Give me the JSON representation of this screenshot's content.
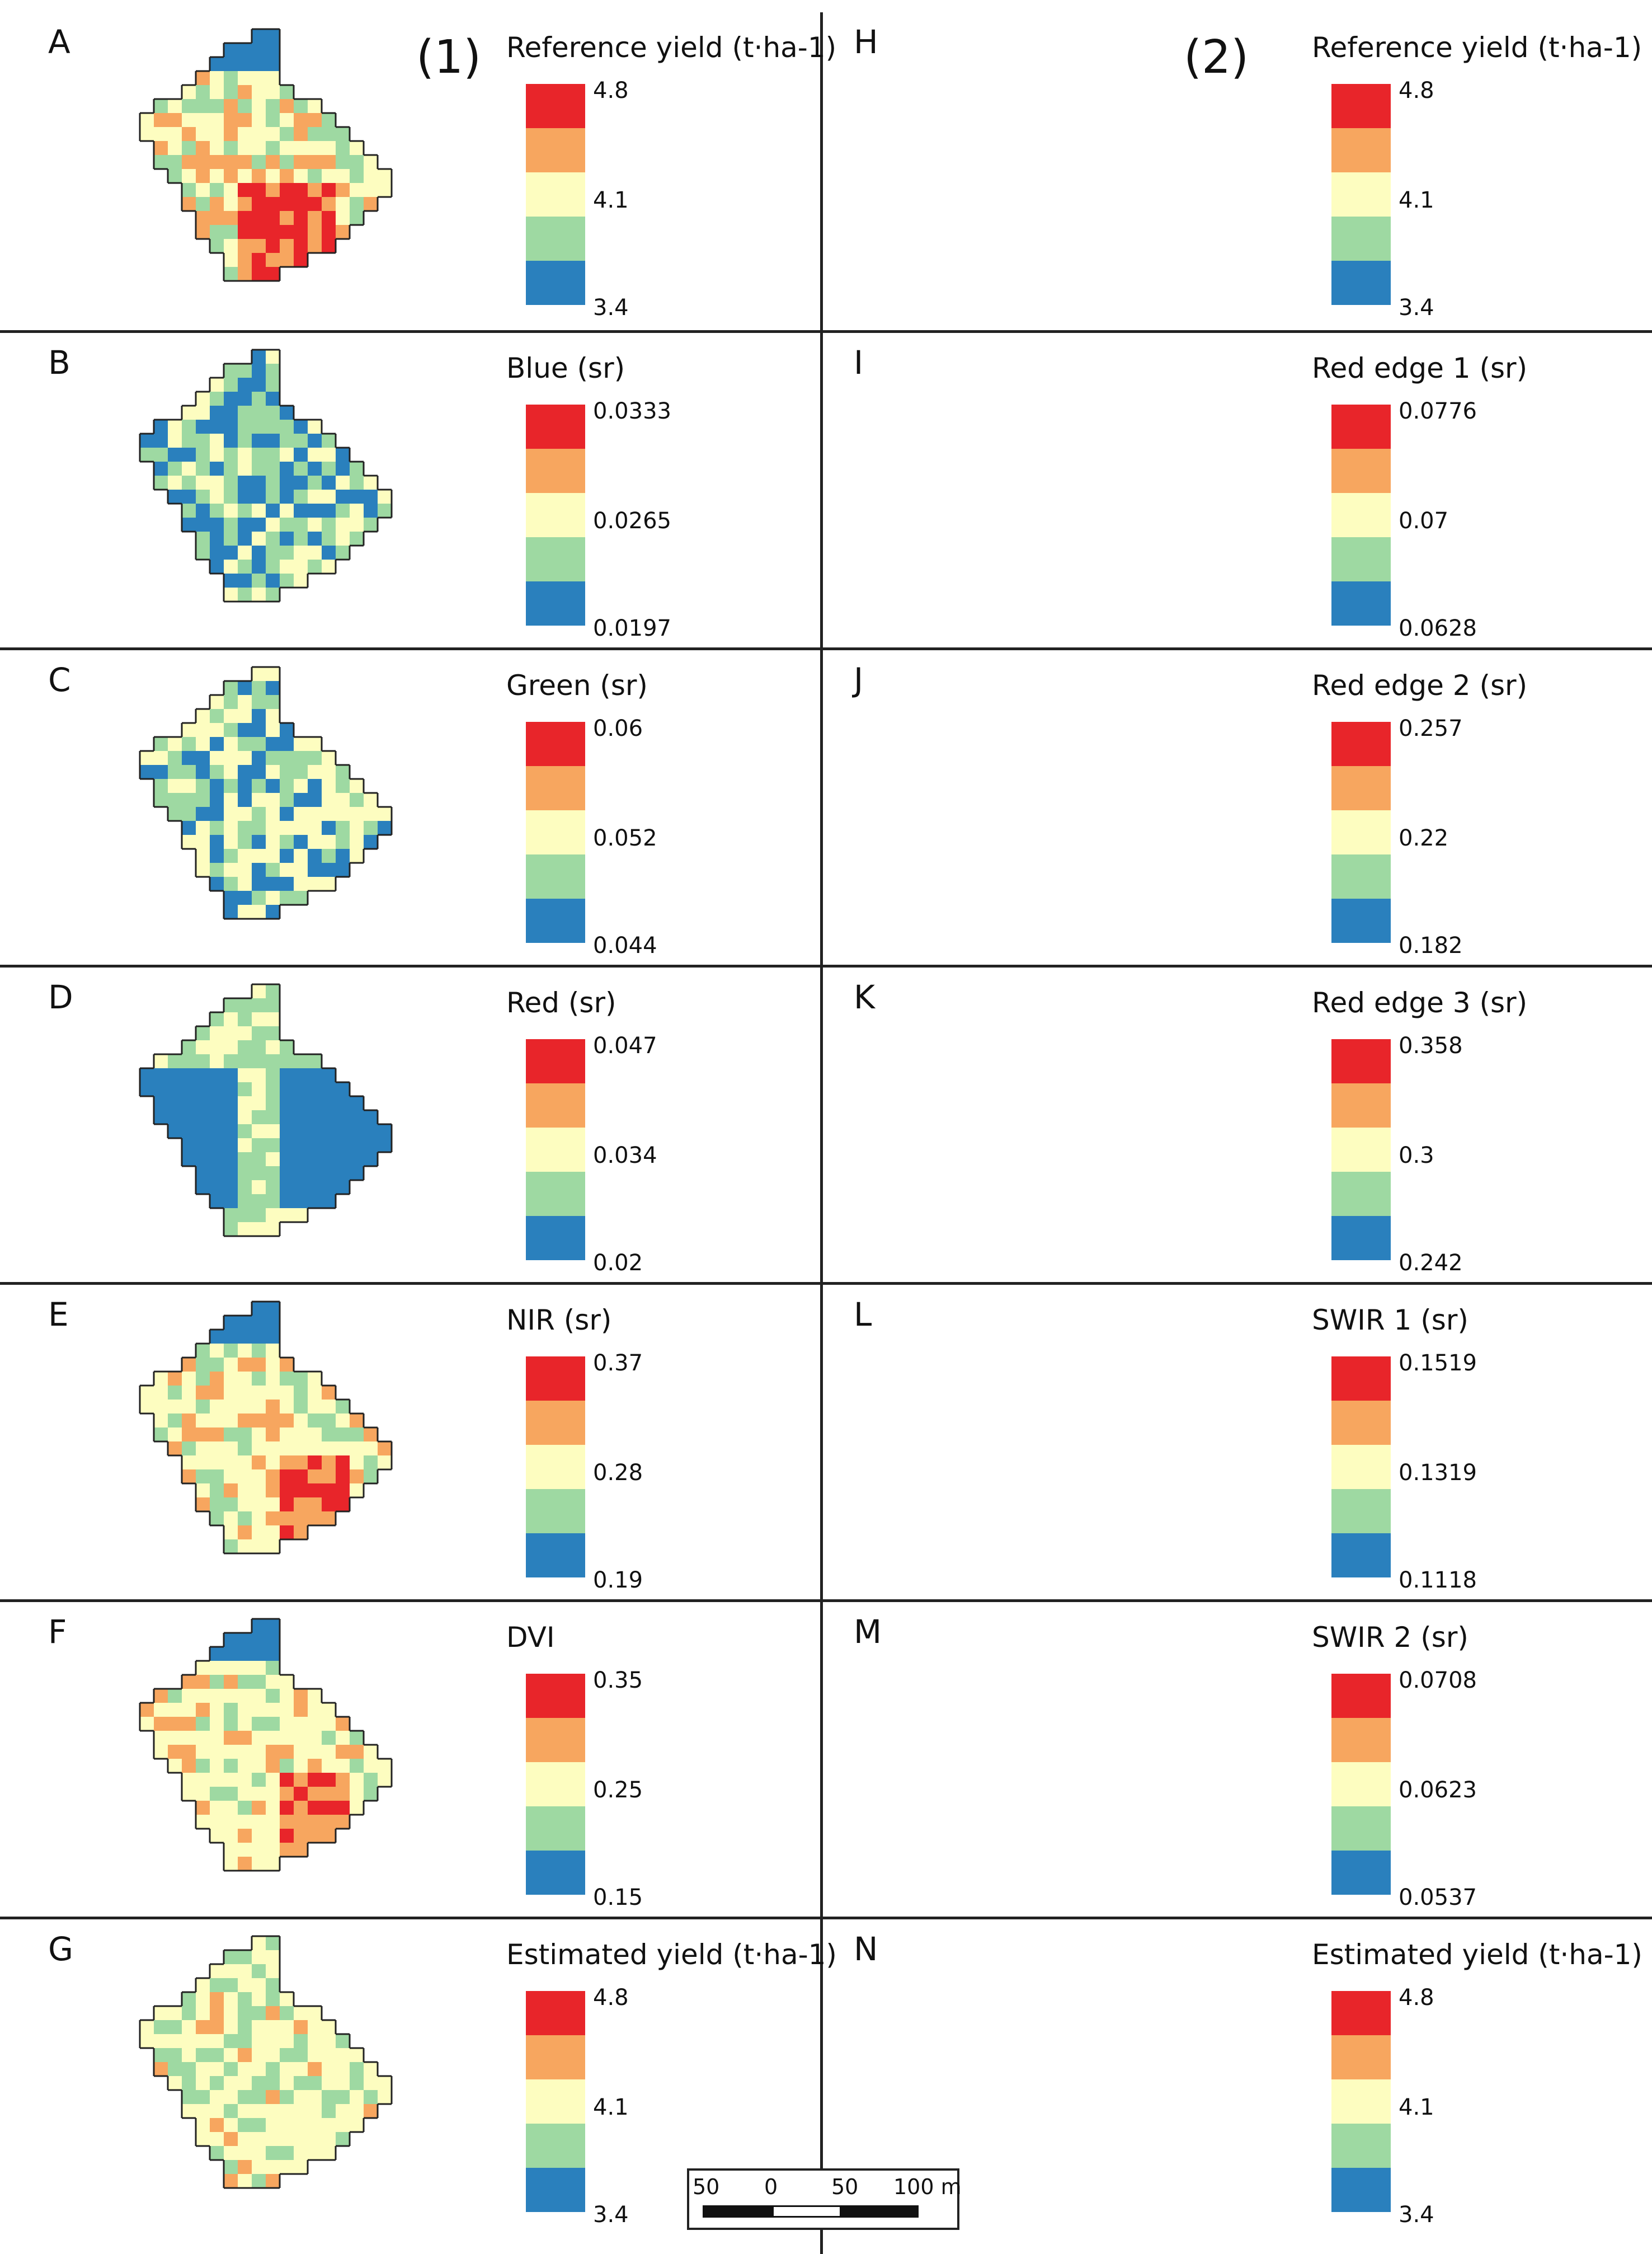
{
  "figure": {
    "group_labels": [
      "(1)",
      "(2)"
    ],
    "colors": {
      "red": "#e8252a",
      "orange": "#f7a65f",
      "yellow": "#fdfdc0",
      "green": "#9ed9a2",
      "blue": "#2a80bd",
      "line": "#222222"
    },
    "scale_bar": {
      "labels": [
        "50",
        "0",
        "50",
        "100 m"
      ]
    },
    "panels": [
      {
        "letter": "A",
        "legend_title": "Reference yield (t·ha-1)",
        "max": "4.8",
        "mid": "4.1",
        "min": "3.4"
      },
      {
        "letter": "B",
        "legend_title": "Blue (sr)",
        "max": "0.0333",
        "mid": "0.0265",
        "min": "0.0197"
      },
      {
        "letter": "C",
        "legend_title": "Green (sr)",
        "max": "0.06",
        "mid": "0.052",
        "min": "0.044"
      },
      {
        "letter": "D",
        "legend_title": "Red (sr)",
        "max": "0.047",
        "mid": "0.034",
        "min": "0.02"
      },
      {
        "letter": "E",
        "legend_title": "NIR (sr)",
        "max": "0.37",
        "mid": "0.28",
        "min": "0.19"
      },
      {
        "letter": "F",
        "legend_title": "DVI",
        "max": "0.35",
        "mid": "0.25",
        "min": "0.15"
      },
      {
        "letter": "G",
        "legend_title": "Estimated yield (t·ha-1)",
        "max": "4.8",
        "mid": "4.1",
        "min": "3.4"
      },
      {
        "letter": "H",
        "legend_title": "Reference yield (t·ha-1)",
        "max": "4.8",
        "mid": "4.1",
        "min": "3.4"
      },
      {
        "letter": "I",
        "legend_title": "Red edge 1 (sr)",
        "max": "0.0776",
        "mid": "0.07",
        "min": "0.0628"
      },
      {
        "letter": "J",
        "legend_title": "Red edge 2 (sr)",
        "max": "0.257",
        "mid": "0.22",
        "min": "0.182"
      },
      {
        "letter": "K",
        "legend_title": "Red edge 3 (sr)",
        "max": "0.358",
        "mid": "0.3",
        "min": "0.242"
      },
      {
        "letter": "L",
        "legend_title": "SWIR 1 (sr)",
        "max": "0.1519",
        "mid": "0.1319",
        "min": "0.1118"
      },
      {
        "letter": "M",
        "legend_title": "SWIR 2 (sr)",
        "max": "0.0708",
        "mid": "0.0623",
        "min": "0.0537"
      },
      {
        "letter": "N",
        "legend_title": "Estimated yield (t·ha-1)",
        "max": "4.8",
        "mid": "4.1",
        "min": "3.4"
      }
    ]
  }
}
